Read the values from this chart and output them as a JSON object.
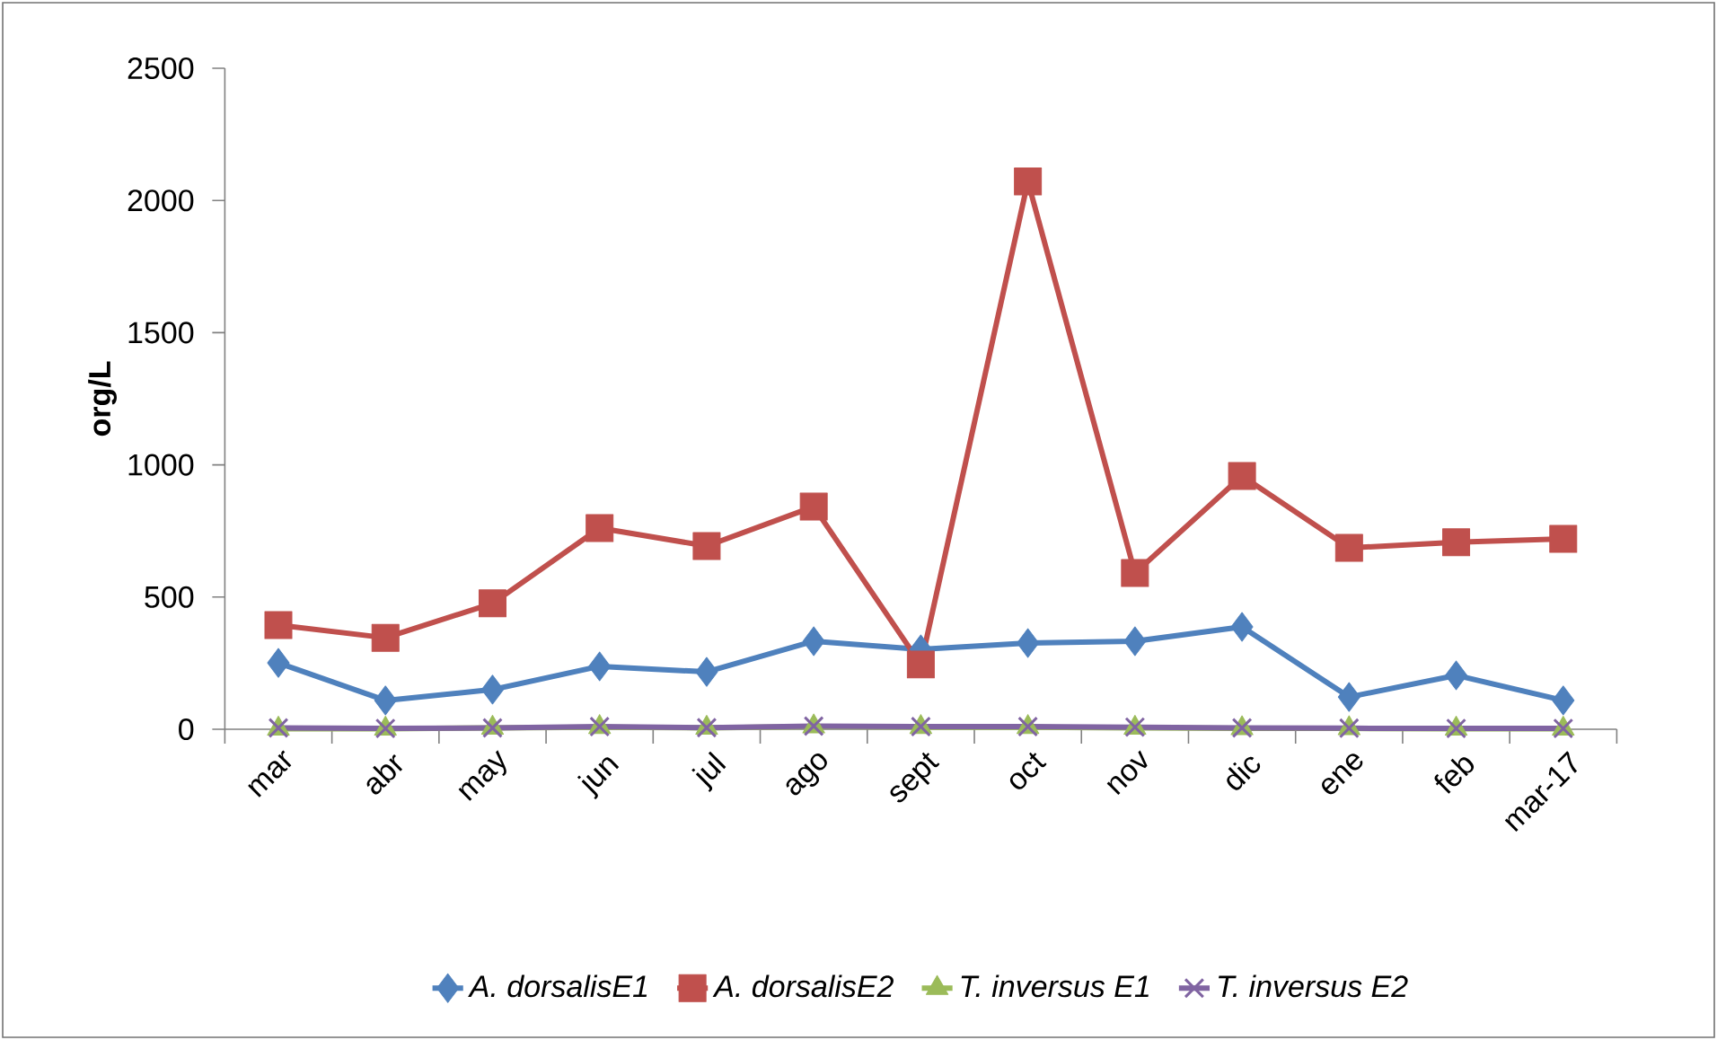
{
  "chart_data": {
    "type": "line",
    "ylabel": "org/L",
    "categories": [
      "mar",
      "abr",
      "may",
      "jun",
      "jul",
      "ago",
      "sept",
      "oct",
      "nov",
      "dic",
      "ene",
      "feb",
      "mar-17"
    ],
    "series": [
      {
        "name": "A. dorsalisE1",
        "color": "#4f81bd",
        "marker": "diamond",
        "values": [
          251,
          109,
          150,
          238,
          217,
          333,
          302,
          326,
          333,
          387,
          122,
          204,
          109
        ]
      },
      {
        "name": "A. dorsalisE2",
        "color": "#c0504d",
        "marker": "square",
        "values": [
          394,
          346,
          476,
          761,
          693,
          842,
          245,
          2072,
          591,
          958,
          686,
          707,
          720
        ]
      },
      {
        "name": "T. inversus E1",
        "color": "#9bbb59",
        "marker": "triangle",
        "values": [
          2,
          2,
          5,
          8,
          5,
          10,
          8,
          8,
          5,
          3,
          3,
          2,
          2
        ]
      },
      {
        "name": "T. inversus E2",
        "color": "#8064a2",
        "marker": "cross",
        "values": [
          5,
          3,
          5,
          10,
          6,
          12,
          10,
          10,
          8,
          5,
          4,
          3,
          3
        ]
      }
    ],
    "ylim": [
      0,
      2500
    ],
    "yticks": [
      0,
      500,
      1000,
      1500,
      2000,
      2500
    ],
    "grid": false,
    "legend": "bottom"
  }
}
